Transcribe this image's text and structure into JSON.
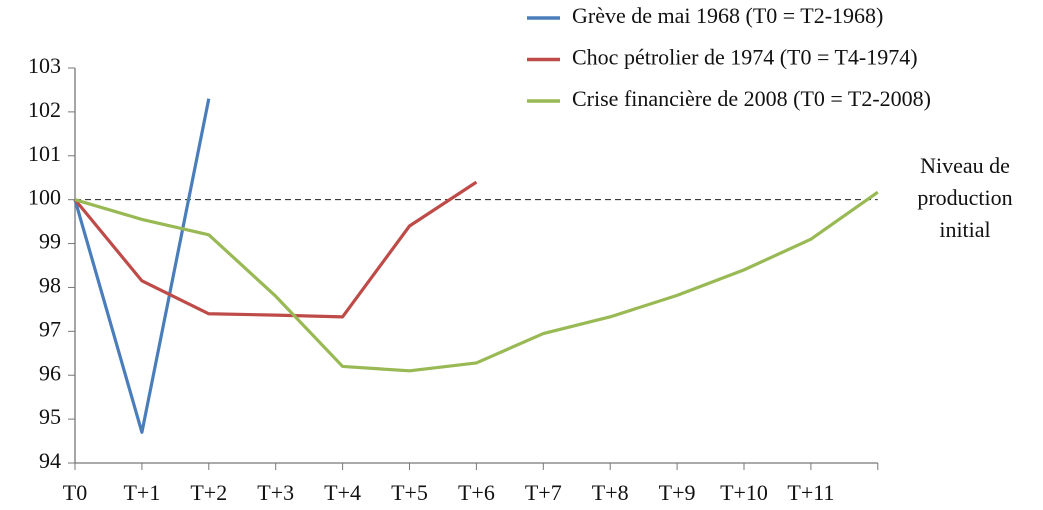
{
  "chart_data": {
    "type": "line",
    "categories": [
      "T0",
      "T+1",
      "T+2",
      "T+3",
      "T+4",
      "T+5",
      "T+6",
      "T+7",
      "T+8",
      "T+9",
      "T+10",
      "T+11",
      null
    ],
    "series": [
      {
        "name": "Grève de mai 1968 (T0 = T2-1968)",
        "color": "#4a7ebb",
        "values": [
          100,
          94.7,
          102.3,
          null,
          null,
          null,
          null,
          null,
          null,
          null,
          null,
          null,
          null
        ]
      },
      {
        "name": "Choc pétrolier de 1974 (T0 = T4-1974)",
        "color": "#be4b48",
        "values": [
          100,
          98.15,
          97.4,
          97.37,
          97.33,
          99.4,
          100.4,
          null,
          null,
          null,
          null,
          null,
          null
        ]
      },
      {
        "name": "Crise financière de 2008 (T0 = T2-2008)",
        "color": "#98b954",
        "values": [
          100,
          99.55,
          99.2,
          97.8,
          96.2,
          96.1,
          96.28,
          96.95,
          97.33,
          97.82,
          98.4,
          99.1,
          100.17
        ]
      }
    ],
    "ylim": [
      94,
      103
    ],
    "yticks": [
      94,
      95,
      96,
      97,
      98,
      99,
      100,
      101,
      102,
      103
    ],
    "reference_line": 100,
    "annotation": [
      "Niveau de",
      "production",
      "initial"
    ],
    "legend": "top-right",
    "grid": false
  }
}
